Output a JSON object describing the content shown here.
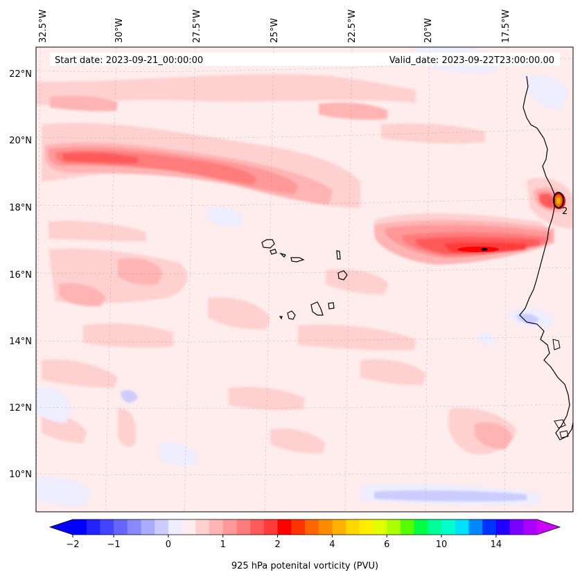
{
  "header": {
    "start_date": "Start date: 2023-09-21_00:00:00",
    "valid_date": "Valid_date: 2023-09-22T23:00:00.00"
  },
  "lon_labels": [
    "32.5°W",
    "30°W",
    "27.5°W",
    "25°W",
    "22.5°W",
    "20°W",
    "17.5°W"
  ],
  "lat_labels": [
    "22°N",
    "20°N",
    "18°N",
    "16°N",
    "14°N",
    "12°N",
    "10°N"
  ],
  "contour_label": "2",
  "colorbar": {
    "title": "925 hPa potenital vorticity (PVU)",
    "tick_labels": [
      "−2",
      "−1",
      "0",
      "1",
      "2",
      "4",
      "6",
      "10",
      "14"
    ],
    "colors": [
      "#0000ff",
      "#2222ff",
      "#4444ff",
      "#6666ff",
      "#8888ff",
      "#aaaaff",
      "#ccccff",
      "#eeeeff",
      "#ffecec",
      "#ffd0d0",
      "#ffb4b4",
      "#ff9898",
      "#ff7c7c",
      "#ff5a5a",
      "#ff3a3a",
      "#ff0000",
      "#ff3300",
      "#ff6600",
      "#ff8c00",
      "#ffb000",
      "#ffd700",
      "#ffee00",
      "#e0ff00",
      "#aaff00",
      "#55ff00",
      "#00ff44",
      "#00ff99",
      "#00ffcc",
      "#00e0ff",
      "#0088ff",
      "#0033ff",
      "#2200ff",
      "#7a00ff",
      "#aa00ff"
    ],
    "extend_low": "#0000ff",
    "extend_high": "#cc00ff"
  }
}
